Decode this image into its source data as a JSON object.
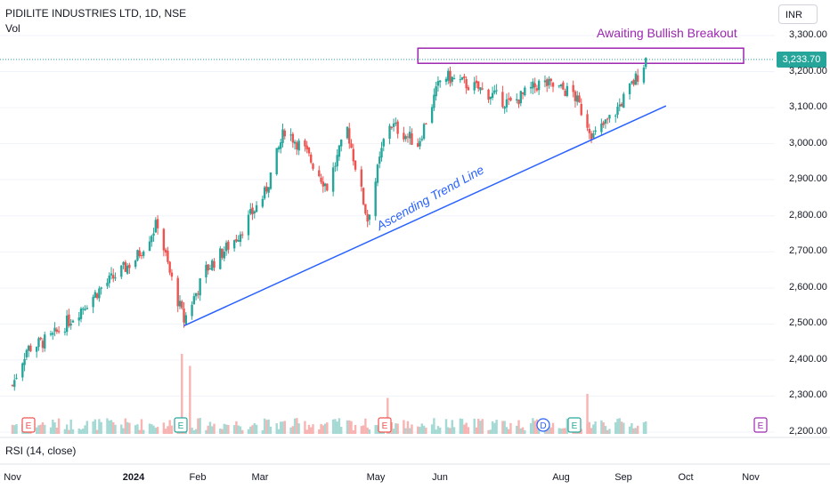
{
  "header": {
    "title": "PIDILITE INDUSTRIES LTD, 1D, NSE",
    "vol_label": "Vol",
    "rsi_label": "RSI (14, close)",
    "currency": "INR",
    "last_price": "3,233.70"
  },
  "annotations": {
    "breakout": "Awaiting Bullish Breakout",
    "trend": "Ascending Trend Line"
  },
  "event_markers": {
    "earnings": "E",
    "dividend": "D"
  },
  "colors": {
    "up": "#26a69a",
    "down": "#ef5350",
    "trend_line": "#2962ff",
    "breakout_box": "#9c27b0",
    "grid": "#f0f3fa",
    "price_line": "#26a69a"
  },
  "chart_data": {
    "type": "candlestick",
    "title": "PIDILITE INDUSTRIES LTD, 1D, NSE",
    "y_ticks": [
      "3,300.00",
      "3,200.00",
      "3,100.00",
      "3,000.00",
      "2,900.00",
      "2,800.00",
      "2,700.00",
      "2,600.00",
      "2,500.00",
      "2,400.00",
      "2,300.00",
      "2,200.00"
    ],
    "x_ticks": [
      "Nov",
      "2024",
      "Feb",
      "Mar",
      "May",
      "Jun",
      "Aug",
      "Sep",
      "Oct",
      "Nov"
    ],
    "ylim": [
      2200,
      3300
    ],
    "grid": false,
    "last_close": 3233.7,
    "breakout_zone": {
      "low": 3223,
      "high": 3265,
      "start": "2024-05-20",
      "end": "2024-11-20"
    },
    "trend_line": {
      "start": {
        "date": "2024-01-25",
        "price": 2495
      },
      "end": {
        "date": "2024-09-20",
        "price": 3105
      }
    },
    "close_path": [
      {
        "date": "2023-11-01",
        "price": 2330
      },
      {
        "date": "2023-11-08",
        "price": 2430
      },
      {
        "date": "2023-11-20",
        "price": 2460
      },
      {
        "date": "2023-12-01",
        "price": 2520
      },
      {
        "date": "2023-12-15",
        "price": 2600
      },
      {
        "date": "2024-01-01",
        "price": 2680
      },
      {
        "date": "2024-01-12",
        "price": 2780
      },
      {
        "date": "2024-01-18",
        "price": 2640
      },
      {
        "date": "2024-01-25",
        "price": 2510
      },
      {
        "date": "2024-02-05",
        "price": 2650
      },
      {
        "date": "2024-02-20",
        "price": 2740
      },
      {
        "date": "2024-03-05",
        "price": 2860
      },
      {
        "date": "2024-03-15",
        "price": 3040
      },
      {
        "date": "2024-03-25",
        "price": 2980
      },
      {
        "date": "2024-04-05",
        "price": 2880
      },
      {
        "date": "2024-04-15",
        "price": 3040
      },
      {
        "date": "2024-04-25",
        "price": 2790
      },
      {
        "date": "2024-05-05",
        "price": 3060
      },
      {
        "date": "2024-05-20",
        "price": 3000
      },
      {
        "date": "2024-06-01",
        "price": 3190
      },
      {
        "date": "2024-06-20",
        "price": 3150
      },
      {
        "date": "2024-07-05",
        "price": 3110
      },
      {
        "date": "2024-07-20",
        "price": 3170
      },
      {
        "date": "2024-08-05",
        "price": 3140
      },
      {
        "date": "2024-08-15",
        "price": 3020
      },
      {
        "date": "2024-08-25",
        "price": 3080
      },
      {
        "date": "2024-09-05",
        "price": 3180
      },
      {
        "date": "2024-09-10",
        "price": 3233.7
      }
    ],
    "volume_spikes": [
      {
        "date": "2024-01-24",
        "relative": 1.0
      },
      {
        "date": "2024-01-28",
        "relative": 0.85
      },
      {
        "date": "2024-08-12",
        "relative": 0.5
      },
      {
        "date": "2024-05-05",
        "relative": 0.45
      }
    ]
  }
}
